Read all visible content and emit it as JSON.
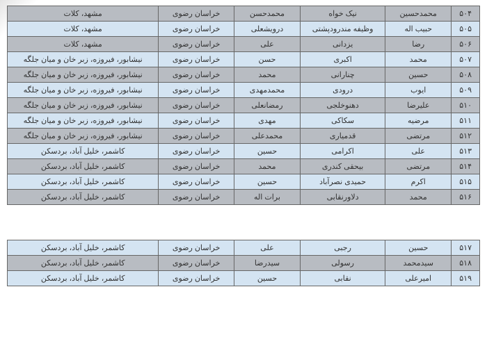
{
  "colors": {
    "gray_row": "#b8bcc2",
    "blue_row": "#d4e4f2",
    "border": "#666666",
    "text": "#333333",
    "background": "#ffffff"
  },
  "typography": {
    "font_family": "Tahoma",
    "font_size": 11
  },
  "table1": {
    "rows": [
      {
        "idx": "۵۰۴",
        "name": "محمدحسین",
        "family": "نیک خواه",
        "father": "محمدحسن",
        "province": "خراسان رضوی",
        "region": "مشهد، کلات",
        "style": "gray"
      },
      {
        "idx": "۵۰۵",
        "name": "حبیب اله",
        "family": "وظیفه مندرودپشتی",
        "father": "درویشعلی",
        "province": "خراسان رضوی",
        "region": "مشهد، کلات",
        "style": "blue"
      },
      {
        "idx": "۵۰۶",
        "name": "رضا",
        "family": "یزدانی",
        "father": "علی",
        "province": "خراسان رضوی",
        "region": "مشهد، کلات",
        "style": "gray"
      },
      {
        "idx": "۵۰۷",
        "name": "محمد",
        "family": "اکبری",
        "father": "حسن",
        "province": "خراسان رضوی",
        "region": "نیشابور، فیروزه، زبر خان و میان جلگه",
        "style": "blue"
      },
      {
        "idx": "۵۰۸",
        "name": "حسین",
        "family": "چنارانی",
        "father": "محمد",
        "province": "خراسان رضوی",
        "region": "نیشابور، فیروزه، زبر خان و میان جلگه",
        "style": "gray"
      },
      {
        "idx": "۵۰۹",
        "name": "ایوب",
        "family": "درودی",
        "father": "محمدمهدی",
        "province": "خراسان رضوی",
        "region": "نیشابور، فیروزه، زبر خان و میان جلگه",
        "style": "blue"
      },
      {
        "idx": "۵۱۰",
        "name": "علیرضا",
        "family": "دهنوخلجی",
        "father": "رمضانعلی",
        "province": "خراسان رضوی",
        "region": "نیشابور، فیروزه، زبر خان و میان جلگه",
        "style": "gray"
      },
      {
        "idx": "۵۱۱",
        "name": "مرضیه",
        "family": "سکاکی",
        "father": "مهدی",
        "province": "خراسان رضوی",
        "region": "نیشابور، فیروزه، زبر خان و میان جلگه",
        "style": "blue"
      },
      {
        "idx": "۵۱۲",
        "name": "مرتضی",
        "family": "قدمیاری",
        "father": "محمدعلی",
        "province": "خراسان رضوی",
        "region": "نیشابور، فیروزه، زبر خان و میان جلگه",
        "style": "gray"
      },
      {
        "idx": "۵۱۳",
        "name": "علی",
        "family": "اکرامی",
        "father": "حسین",
        "province": "خراسان رضوی",
        "region": "کاشمر، خلیل آباد، بردسکن",
        "style": "blue"
      },
      {
        "idx": "۵۱۴",
        "name": "مرتضی",
        "family": "بیحقی کندری",
        "father": "محمد",
        "province": "خراسان رضوی",
        "region": "کاشمر، خلیل آباد، بردسکن",
        "style": "gray"
      },
      {
        "idx": "۵۱۵",
        "name": "اکرم",
        "family": "حمیدی نصرآباد",
        "father": "حسین",
        "province": "خراسان رضوی",
        "region": "کاشمر، خلیل آباد، بردسکن",
        "style": "blue"
      },
      {
        "idx": "۵۱۶",
        "name": "محمد",
        "family": "دلاورنقابی",
        "father": "برات اله",
        "province": "خراسان رضوی",
        "region": "کاشمر، خلیل آباد، بردسکن",
        "style": "gray"
      }
    ]
  },
  "table2": {
    "rows": [
      {
        "idx": "۵۱۷",
        "name": "حسین",
        "family": "رجبی",
        "father": "علی",
        "province": "خراسان رضوی",
        "region": "کاشمر، خلیل آباد، بردسکن",
        "style": "blue"
      },
      {
        "idx": "۵۱۸",
        "name": "سیدمحمد",
        "family": "رسولی",
        "father": "سیدرضا",
        "province": "خراسان رضوی",
        "region": "کاشمر، خلیل آباد، بردسکن",
        "style": "gray"
      },
      {
        "idx": "۵۱۹",
        "name": "امیرعلی",
        "family": "نقابی",
        "father": "حسین",
        "province": "خراسان رضوی",
        "region": "کاشمر، خلیل آباد، بردسکن",
        "style": "blue"
      }
    ]
  }
}
